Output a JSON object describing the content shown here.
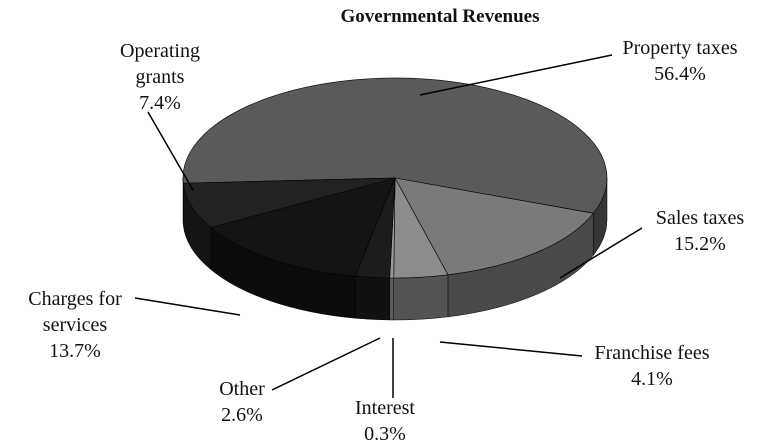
{
  "chart_data": {
    "type": "pie",
    "title": "Governmental Revenues",
    "categories": [
      "Property taxes",
      "Sales taxes",
      "Franchise fees",
      "Interest",
      "Other",
      "Charges for services",
      "Operating grants"
    ],
    "values": [
      56.4,
      15.2,
      4.1,
      0.3,
      2.6,
      13.7,
      7.4
    ],
    "value_labels": [
      "56.4%",
      "15.2%",
      "4.1%",
      "0.3%",
      "2.6%",
      "13.7%",
      "7.4%"
    ],
    "colors": [
      "#5a5a5a",
      "#7a7a7a",
      "#8c8c8c",
      "#9a9a9a",
      "#1c1c1c",
      "#141414",
      "#222222"
    ]
  }
}
